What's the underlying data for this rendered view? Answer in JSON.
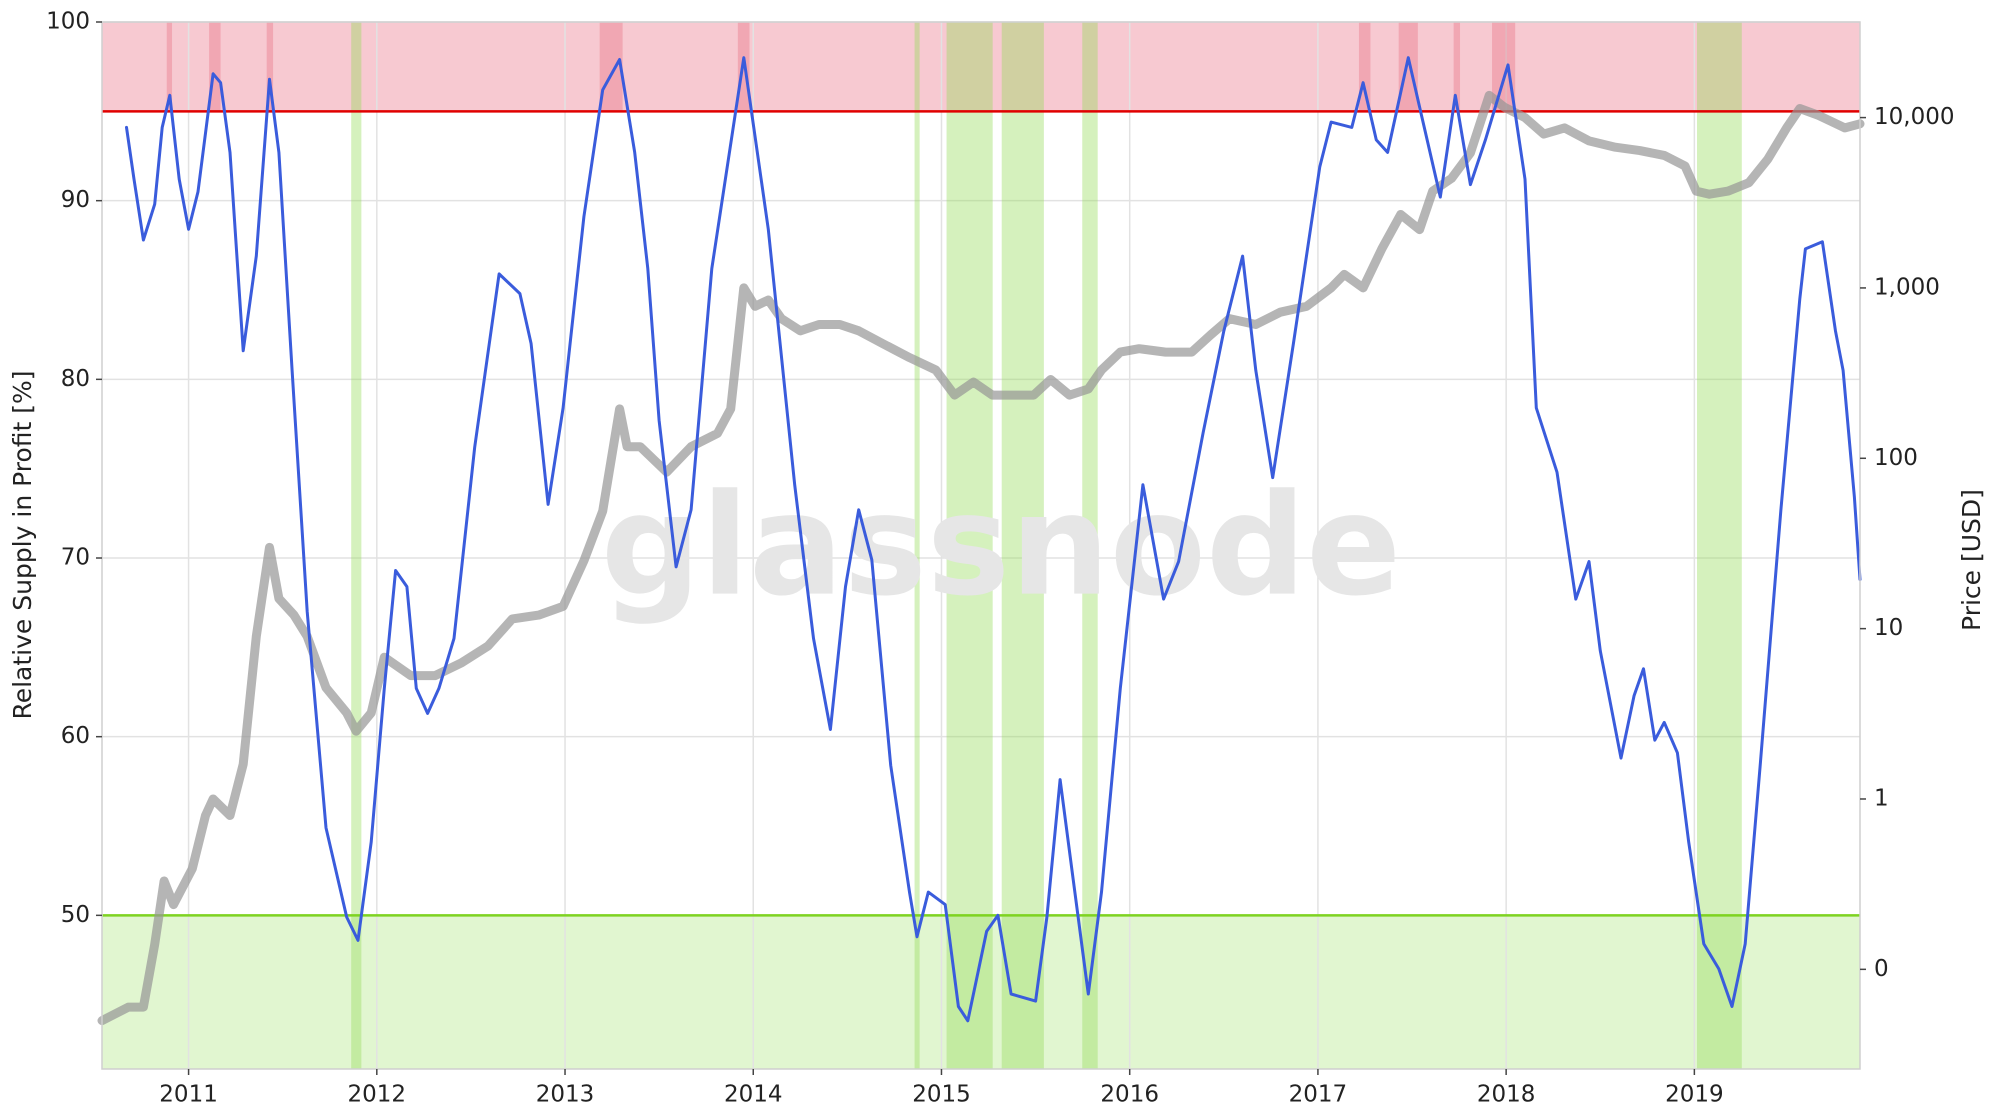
{
  "chart_data": {
    "type": "line",
    "watermark": "glassnode",
    "y_label": "Relative Supply in Profit [%]",
    "y2_label": "Price [USD]",
    "xlim": [
      2010.54,
      2019.88
    ],
    "xticks": [
      2011,
      2012,
      2013,
      2014,
      2015,
      2016,
      2017,
      2018,
      2019
    ],
    "ylim": [
      41.4,
      100
    ],
    "yticks": [
      50,
      60,
      70,
      80,
      90,
      100
    ],
    "y2lim": [
      0.026,
      36400
    ],
    "y2_log": true,
    "y2ticks": [
      {
        "value": 0.1,
        "label": "0"
      },
      1,
      10,
      100,
      {
        "value": 1000,
        "label": "1,000"
      },
      {
        "value": 10000,
        "label": "10,000"
      }
    ],
    "grid": true,
    "upper_threshold": 95,
    "upper_color": "#e00000",
    "upper_zone_color": "rgba(235,120,140,0.4)",
    "lower_threshold": 50,
    "lower_color": "#7ed321",
    "lower_zone_color": "rgba(170,228,120,0.35)",
    "red_bands": [
      [
        2010.884,
        2010.912
      ],
      [
        2011.109,
        2011.17
      ],
      [
        2011.415,
        2011.449
      ],
      [
        2013.184,
        2013.306
      ],
      [
        2013.918,
        2013.98
      ],
      [
        2017.218,
        2017.279
      ],
      [
        2017.429,
        2017.531
      ],
      [
        2017.721,
        2017.755
      ],
      [
        2017.925,
        2018.048
      ]
    ],
    "red_band_color": "rgba(230,90,110,0.3)",
    "green_bands": [
      [
        2011.864,
        2011.918
      ],
      [
        2014.857,
        2014.884
      ],
      [
        2015.027,
        2015.272
      ],
      [
        2015.32,
        2015.544
      ],
      [
        2015.748,
        2015.83
      ],
      [
        2019.014,
        2019.252
      ]
    ],
    "green_band_color": "rgba(150,220,90,0.4)",
    "series": [
      {
        "name": "Price",
        "axis": "y2",
        "color": "rgba(150,150,150,0.7)",
        "x": [
          2010.54,
          2010.68,
          2010.76,
          2010.82,
          2010.87,
          2010.92,
          2011.02,
          2011.09,
          2011.13,
          2011.22,
          2011.29,
          2011.36,
          2011.43,
          2011.48,
          2011.56,
          2011.63,
          2011.73,
          2011.84,
          2011.89,
          2011.97,
          2012.04,
          2012.18,
          2012.31,
          2012.45,
          2012.59,
          2012.72,
          2012.86,
          2012.99,
          2013.1,
          2013.2,
          2013.29,
          2013.33,
          2013.4,
          2013.54,
          2013.67,
          2013.81,
          2013.88,
          2013.95,
          2014.01,
          2014.08,
          2014.15,
          2014.25,
          2014.35,
          2014.46,
          2014.56,
          2014.69,
          2014.83,
          2014.97,
          2015.07,
          2015.17,
          2015.27,
          2015.37,
          2015.49,
          2015.58,
          2015.68,
          2015.78,
          2015.85,
          2015.95,
          2016.05,
          2016.19,
          2016.33,
          2016.43,
          2016.53,
          2016.67,
          2016.8,
          2016.94,
          2017.07,
          2017.14,
          2017.24,
          2017.34,
          2017.44,
          2017.54,
          2017.61,
          2017.71,
          2017.81,
          2017.91,
          2017.99,
          2018.1,
          2018.2,
          2018.31,
          2018.44,
          2018.58,
          2018.71,
          2018.84,
          2018.95,
          2019.01,
          2019.08,
          2019.18,
          2019.29,
          2019.39,
          2019.49,
          2019.56,
          2019.66,
          2019.8,
          2019.88
        ],
        "values": [
          0.05,
          0.06,
          0.06,
          0.14,
          0.33,
          0.24,
          0.39,
          0.8,
          1.0,
          0.8,
          1.6,
          9,
          30,
          15,
          12,
          9,
          4.5,
          3.2,
          2.5,
          3.2,
          6.8,
          5.3,
          5.3,
          6.3,
          7.9,
          11.4,
          12,
          13.5,
          25,
          49,
          195,
          117,
          117,
          83,
          117,
          140,
          195,
          1000,
          780,
          850,
          660,
          560,
          610,
          610,
          560,
          470,
          390,
          330,
          235,
          280,
          235,
          235,
          235,
          290,
          235,
          255,
          330,
          420,
          440,
          420,
          420,
          530,
          660,
          610,
          720,
          780,
          1000,
          1200,
          1000,
          1700,
          2700,
          2200,
          3700,
          4400,
          6200,
          13500,
          11500,
          10000,
          8000,
          8700,
          7300,
          6700,
          6400,
          6000,
          5200,
          3700,
          3550,
          3700,
          4150,
          5700,
          8700,
          11300,
          10300,
          8700,
          9200
        ]
      },
      {
        "name": "Relative Supply in Profit",
        "axis": "y",
        "color": "#3a5cdc",
        "x": [
          2010.67,
          2010.71,
          2010.76,
          2010.82,
          2010.86,
          2010.9,
          2010.95,
          2011.0,
          2011.05,
          2011.13,
          2011.17,
          2011.22,
          2011.29,
          2011.36,
          2011.43,
          2011.48,
          2011.55,
          2011.63,
          2011.73,
          2011.84,
          2011.9,
          2011.97,
          2012.04,
          2012.1,
          2012.16,
          2012.21,
          2012.27,
          2012.33,
          2012.41,
          2012.52,
          2012.65,
          2012.76,
          2012.82,
          2012.91,
          2012.99,
          2013.1,
          2013.2,
          2013.29,
          2013.37,
          2013.44,
          2013.5,
          2013.59,
          2013.67,
          2013.78,
          2013.95,
          2014.08,
          2014.22,
          2014.32,
          2014.41,
          2014.49,
          2014.56,
          2014.63,
          2014.73,
          2014.83,
          2014.87,
          2014.93,
          2015.02,
          2015.09,
          2015.14,
          2015.24,
          2015.3,
          2015.37,
          2015.5,
          2015.56,
          2015.63,
          2015.7,
          2015.78,
          2015.85,
          2015.95,
          2016.07,
          2016.18,
          2016.26,
          2016.39,
          2016.5,
          2016.6,
          2016.67,
          2016.76,
          2016.87,
          2017.01,
          2017.07,
          2017.18,
          2017.24,
          2017.31,
          2017.37,
          2017.48,
          2017.55,
          2017.65,
          2017.73,
          2017.81,
          2017.89,
          2018.01,
          2018.1,
          2018.16,
          2018.27,
          2018.37,
          2018.44,
          2018.5,
          2018.61,
          2018.68,
          2018.73,
          2018.79,
          2018.84,
          2018.91,
          2018.97,
          2019.05,
          2019.13,
          2019.2,
          2019.27,
          2019.35,
          2019.46,
          2019.56,
          2019.59,
          2019.68,
          2019.75,
          2019.79,
          2019.85,
          2019.88
        ],
        "values": [
          94.1,
          91.2,
          87.8,
          89.8,
          94.1,
          95.9,
          91.2,
          88.4,
          90.5,
          97.1,
          96.6,
          92.7,
          81.6,
          86.9,
          96.8,
          92.7,
          80.5,
          67.0,
          54.9,
          49.9,
          48.6,
          54.1,
          62.7,
          69.3,
          68.4,
          62.7,
          61.3,
          62.7,
          65.5,
          76.2,
          85.9,
          84.8,
          82.0,
          73.0,
          78.4,
          89.1,
          96.2,
          97.9,
          92.7,
          86.2,
          77.7,
          69.5,
          72.7,
          86.2,
          98.0,
          88.4,
          74.1,
          65.5,
          60.4,
          68.4,
          72.7,
          69.9,
          58.4,
          51.3,
          48.8,
          51.3,
          50.6,
          44.9,
          44.1,
          49.1,
          50.0,
          45.6,
          45.2,
          49.9,
          57.6,
          52.0,
          45.6,
          51.3,
          62.7,
          74.1,
          67.7,
          69.8,
          77.0,
          82.7,
          86.9,
          80.5,
          74.5,
          82.0,
          91.9,
          94.4,
          94.1,
          96.6,
          93.4,
          92.7,
          98.0,
          94.8,
          90.2,
          95.9,
          90.9,
          93.4,
          97.6,
          91.2,
          78.4,
          74.8,
          67.7,
          69.8,
          64.8,
          58.8,
          62.3,
          63.8,
          59.8,
          60.8,
          59.1,
          54.1,
          48.4,
          47.0,
          44.9,
          48.4,
          58.4,
          72.7,
          84.5,
          87.3,
          87.7,
          82.7,
          80.5,
          73.4,
          68.8
        ]
      }
    ]
  }
}
